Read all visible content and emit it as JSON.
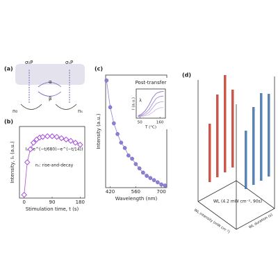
{
  "diagram": {
    "panel_label": "(a)",
    "labels": [
      "σ₀P",
      "σₛP",
      "α",
      "β",
      "n₀",
      "nₛ"
    ]
  },
  "chart_data": [
    {
      "type": "scatter-line",
      "panel_label": "(b)",
      "x_label": "Stimulation time, t (s)",
      "y_label": "Intensity, Iₛ (a.u.)",
      "annotations": [
        "Iₛ∝(e^(−t/680)−e^(−t/14))",
        "nₛ: rise-and-decay"
      ],
      "color": "#a64ddb",
      "x": [
        0,
        10,
        20,
        30,
        40,
        50,
        60,
        75,
        90,
        105,
        120,
        135,
        150,
        165,
        180
      ],
      "values": [
        0.05,
        0.55,
        0.75,
        0.85,
        0.9,
        0.93,
        0.94,
        0.95,
        0.95,
        0.94,
        0.92,
        0.9,
        0.88,
        0.85,
        0.82
      ],
      "xlim": [
        -15,
        195
      ],
      "ylim": [
        0,
        1.1
      ],
      "xticks": [
        0,
        90,
        180
      ]
    },
    {
      "type": "scatter-line",
      "panel_label": "(c)",
      "x_label": "Wavelength (nm)",
      "y_label": "Intensity (a.u.)",
      "color": "#8b7fd6",
      "x": [
        400,
        420,
        440,
        460,
        480,
        500,
        520,
        540,
        560,
        580,
        600,
        620,
        640,
        660,
        680,
        700,
        720
      ],
      "values": [
        1.0,
        0.75,
        0.6,
        0.5,
        0.42,
        0.37,
        0.3,
        0.27,
        0.22,
        0.18,
        0.14,
        0.11,
        0.09,
        0.07,
        0.05,
        0.03,
        0.02
      ],
      "xlim": [
        395,
        730
      ],
      "ylim": [
        0,
        1.05
      ],
      "xticks": [
        420,
        560,
        700
      ]
    },
    {
      "type": "lines",
      "title": "Post-transfer",
      "x_label": "T (°C)",
      "y_label": "I (a.u.)",
      "annotations": [
        "λ"
      ],
      "x": [
        40,
        60,
        80,
        100,
        120,
        140,
        160,
        180
      ],
      "series": [
        {
          "color": "#c9b8e8",
          "values": [
            0.05,
            0.06,
            0.08,
            0.12,
            0.2,
            0.3,
            0.35,
            0.37
          ]
        },
        {
          "color": "#b39ddb",
          "values": [
            0.05,
            0.08,
            0.12,
            0.2,
            0.35,
            0.5,
            0.55,
            0.57
          ]
        },
        {
          "color": "#9c7fd0",
          "values": [
            0.06,
            0.1,
            0.18,
            0.3,
            0.5,
            0.68,
            0.74,
            0.76
          ]
        },
        {
          "color": "#8560c4",
          "values": [
            0.08,
            0.14,
            0.26,
            0.45,
            0.7,
            0.85,
            0.9,
            0.92
          ]
        }
      ],
      "xlim": [
        30,
        190
      ],
      "ylim": [
        0,
        1
      ],
      "xticks": [
        50,
        160
      ]
    },
    {
      "type": "bar3d",
      "panel_label": "(d)",
      "center_label": "WL (4.2 mW cm⁻², 90s)",
      "axis_labels": [
        "WL intensity (mW cm⁻²)",
        "WL duration (s)"
      ],
      "series": [
        {
          "color": "#c0392b",
          "values": [
            0.6,
            0.85,
            1.0,
            0.8
          ]
        },
        {
          "color": "#3a6ea8",
          "values": [
            0.6,
            0.8,
            0.9,
            0.85
          ]
        }
      ]
    }
  ]
}
